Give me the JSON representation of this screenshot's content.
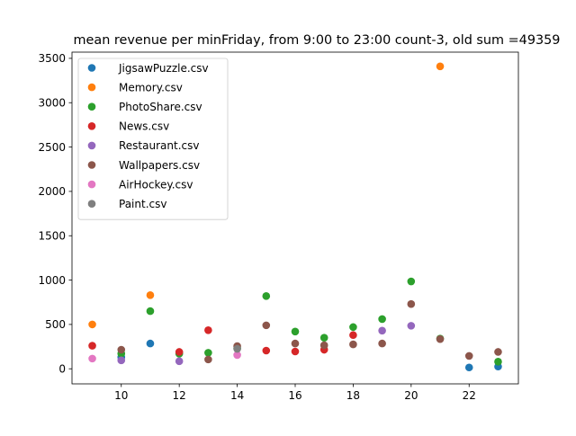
{
  "chart_data": {
    "type": "scatter",
    "title": "mean revenue per minFriday, from 9:00 to 23:00 count-3, old sum =49359",
    "xlabel": "",
    "ylabel": "",
    "xlim": [
      8.3,
      23.7
    ],
    "ylim": [
      -170,
      3570
    ],
    "xticks": [
      10,
      12,
      14,
      16,
      18,
      20,
      22
    ],
    "yticks": [
      0,
      500,
      1000,
      1500,
      2000,
      2500,
      3000,
      3500
    ],
    "grid": false,
    "legend_position": "upper-left",
    "series": [
      {
        "name": "JigsawPuzzle.csv",
        "color": "#1f77b4",
        "points": [
          [
            10,
            130
          ],
          [
            11,
            285
          ],
          [
            22,
            15
          ],
          [
            23,
            25
          ]
        ]
      },
      {
        "name": "Memory.csv",
        "color": "#ff7f0e",
        "points": [
          [
            9,
            500
          ],
          [
            11,
            830
          ],
          [
            21,
            3410
          ]
        ]
      },
      {
        "name": "PhotoShare.csv",
        "color": "#2ca02c",
        "points": [
          [
            10,
            170
          ],
          [
            11,
            650
          ],
          [
            12,
            170
          ],
          [
            13,
            180
          ],
          [
            14,
            230
          ],
          [
            15,
            820
          ],
          [
            16,
            420
          ],
          [
            17,
            350
          ],
          [
            18,
            470
          ],
          [
            19,
            560
          ],
          [
            20,
            985
          ],
          [
            21,
            340
          ],
          [
            23,
            80
          ]
        ]
      },
      {
        "name": "News.csv",
        "color": "#d62728",
        "points": [
          [
            9,
            260
          ],
          [
            12,
            190
          ],
          [
            13,
            435
          ],
          [
            15,
            205
          ],
          [
            16,
            195
          ],
          [
            17,
            215
          ],
          [
            18,
            380
          ]
        ]
      },
      {
        "name": "Restaurant.csv",
        "color": "#9467bd",
        "points": [
          [
            10,
            95
          ],
          [
            12,
            85
          ],
          [
            19,
            430
          ],
          [
            20,
            485
          ]
        ]
      },
      {
        "name": "Wallpapers.csv",
        "color": "#8c564b",
        "points": [
          [
            10,
            215
          ],
          [
            13,
            105
          ],
          [
            14,
            255
          ],
          [
            15,
            490
          ],
          [
            16,
            285
          ],
          [
            17,
            265
          ],
          [
            18,
            275
          ],
          [
            19,
            285
          ],
          [
            20,
            730
          ],
          [
            21,
            335
          ],
          [
            22,
            145
          ],
          [
            23,
            190
          ]
        ]
      },
      {
        "name": "AirHockey.csv",
        "color": "#e377c2",
        "points": [
          [
            9,
            115
          ],
          [
            14,
            155
          ]
        ]
      },
      {
        "name": "Paint.csv",
        "color": "#7f7f7f",
        "points": [
          [
            14,
            225
          ]
        ]
      }
    ]
  }
}
